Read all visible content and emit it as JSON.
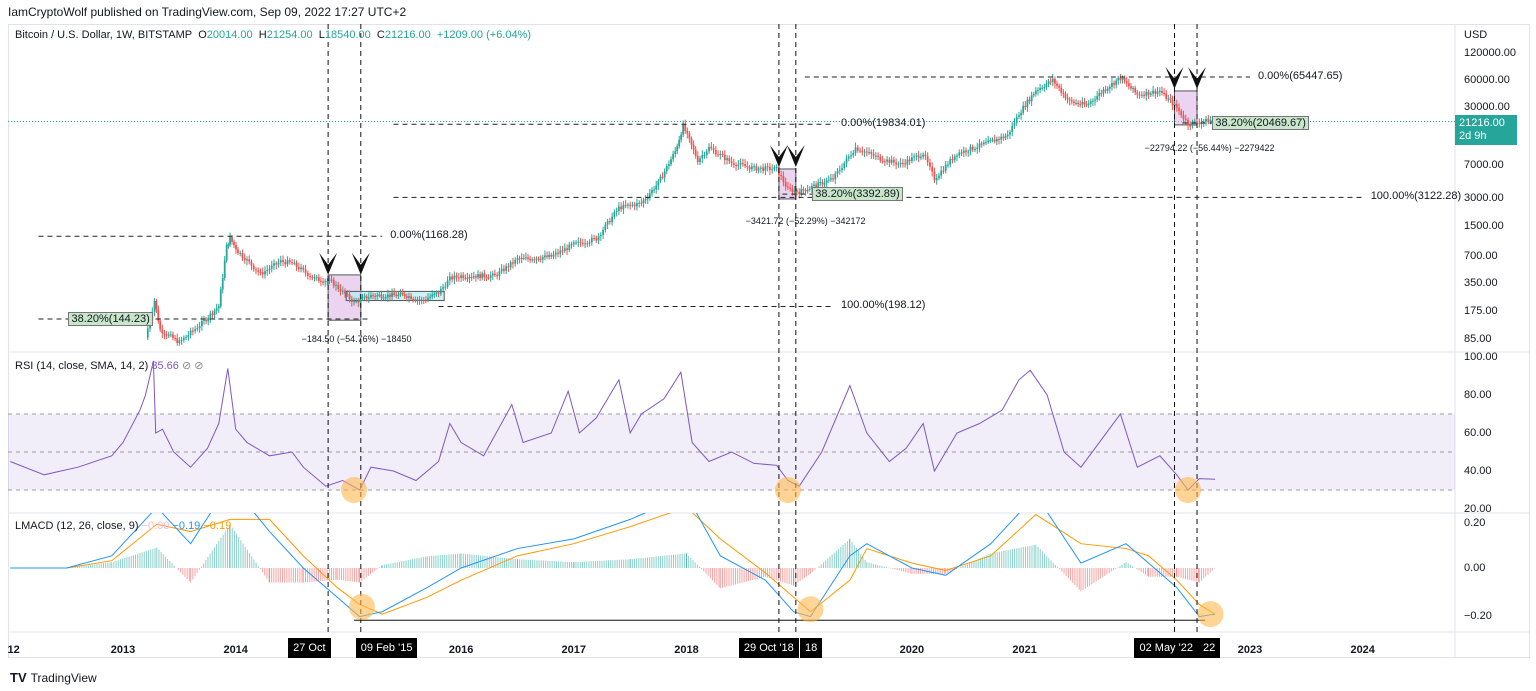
{
  "header": {
    "published": "IamCryptoWolf published on TradingView.com, Sep 09, 2022 17:27 UTC+2",
    "symbol": "Bitcoin / U.S. Dollar, 1W, BITSTAMP",
    "o_label": "O",
    "o": "20014.00",
    "h_label": "H",
    "h": "21254.00",
    "l_label": "L",
    "l": "18540.00",
    "c_label": "C",
    "c": "21216.00",
    "change": "+1209.00 (+6.04%)"
  },
  "currency": "USD",
  "last_price": {
    "value": "21216.00",
    "countdown": "2d 9h"
  },
  "footer": {
    "brand": "TradingView"
  },
  "colors": {
    "up": "#26a69a",
    "down": "#ef5350",
    "rsi": "#7e57c2",
    "macd": "#2196f3",
    "signal": "#ff9800",
    "highlight": "#ffb74d"
  },
  "indicators": {
    "rsi": {
      "title": "RSI (14, close, SMA, 14, 2)",
      "value": "35.66"
    },
    "lmacd": {
      "title": "LMACD (12, 26, close, 9)",
      "hist": "−0.00",
      "macd": "−0.19",
      "signal": "−0.19"
    }
  },
  "chart_data": {
    "type": "candlestick",
    "scale": "log",
    "x_ticks": [
      "12",
      "2013",
      "2014",
      "2016",
      "2017",
      "2018",
      "2020",
      "2021",
      "2023",
      "2024"
    ],
    "x_tick_years": [
      2012.03,
      2013,
      2014,
      2016,
      2017,
      2018,
      2020,
      2021,
      2023,
      2024
    ],
    "y_ticks": [
      "120000.00",
      "60000.00",
      "30000.00",
      "7000.00",
      "3000.00",
      "1500.00",
      "700.00",
      "350.00",
      "175.00",
      "85.00"
    ],
    "y_tick_values": [
      120000,
      60000,
      30000,
      7000,
      3000,
      1500,
      700,
      350,
      175,
      85
    ],
    "price_path": [
      [
        2013.2,
        90
      ],
      [
        2013.28,
        230
      ],
      [
        2013.33,
        110
      ],
      [
        2013.5,
        80
      ],
      [
        2013.7,
        130
      ],
      [
        2013.85,
        200
      ],
      [
        2013.92,
        900
      ],
      [
        2013.95,
        1100
      ],
      [
        2014.02,
        800
      ],
      [
        2014.12,
        600
      ],
      [
        2014.22,
        450
      ],
      [
        2014.4,
        620
      ],
      [
        2014.5,
        590
      ],
      [
        2014.7,
        400
      ],
      [
        2014.85,
        370
      ],
      [
        2015.05,
        220
      ],
      [
        2015.2,
        260
      ],
      [
        2015.5,
        265
      ],
      [
        2015.65,
        230
      ],
      [
        2015.8,
        280
      ],
      [
        2015.9,
        400
      ],
      [
        2016.0,
        430
      ],
      [
        2016.3,
        430
      ],
      [
        2016.5,
        650
      ],
      [
        2016.8,
        700
      ],
      [
        2017.0,
        950
      ],
      [
        2017.2,
        1100
      ],
      [
        2017.4,
        2400
      ],
      [
        2017.6,
        2700
      ],
      [
        2017.75,
        4500
      ],
      [
        2017.9,
        10000
      ],
      [
        2017.97,
        19000
      ],
      [
        2018.1,
        8000
      ],
      [
        2018.2,
        11000
      ],
      [
        2018.4,
        7500
      ],
      [
        2018.6,
        6500
      ],
      [
        2018.8,
        6400
      ],
      [
        2018.9,
        3800
      ],
      [
        2019.0,
        3600
      ],
      [
        2019.3,
        5000
      ],
      [
        2019.5,
        11000
      ],
      [
        2019.7,
        8500
      ],
      [
        2019.9,
        7200
      ],
      [
        2020.1,
        9500
      ],
      [
        2020.2,
        5000
      ],
      [
        2020.4,
        9500
      ],
      [
        2020.6,
        11500
      ],
      [
        2020.85,
        15000
      ],
      [
        2020.95,
        26000
      ],
      [
        2021.1,
        47000
      ],
      [
        2021.25,
        60000
      ],
      [
        2021.4,
        35000
      ],
      [
        2021.55,
        32000
      ],
      [
        2021.7,
        47000
      ],
      [
        2021.85,
        64000
      ],
      [
        2022.0,
        42000
      ],
      [
        2022.2,
        46000
      ],
      [
        2022.35,
        30000
      ],
      [
        2022.45,
        20000
      ],
      [
        2022.55,
        21000
      ],
      [
        2022.65,
        22000
      ],
      [
        2022.69,
        21216
      ]
    ],
    "fib_levels": [
      {
        "label": "0.00%(1168.28)",
        "price": 1168.28,
        "from": 2012.25,
        "to": 2015.3
      },
      {
        "label": "100.00%(198.12)",
        "price": 198.12,
        "from": 2015.8,
        "to": 2019.3
      },
      {
        "label": "38.20%(144.23)",
        "price": 144.23,
        "from": 2012.25,
        "to": 2015.2,
        "tag": true
      },
      {
        "label": "0.00%(19834.01)",
        "price": 19834.01,
        "from": 2015.4,
        "to": 2019.3
      },
      {
        "label": "100.00%(3122.28)",
        "price": 3122.28,
        "from": 2015.4,
        "to": 2024.0
      },
      {
        "label": "38.20%(3392.89)",
        "price": 3392.89,
        "from": 2018.85,
        "to": 2019.3,
        "tag": true
      },
      {
        "label": "0.00%(65447.65)",
        "price": 65447.65,
        "from": 2019.05,
        "to": 2023.0
      },
      {
        "label": "38.20%(20469.67)",
        "price": 20469.67,
        "from": 2022.4,
        "to": 2023.1,
        "tag": true
      }
    ],
    "measures": [
      {
        "label": "−184.50 (−54.76%) −18450",
        "date": 2014.94,
        "price": 120
      },
      {
        "label": "−3421.72 (−52.29%) −342172",
        "date": 2018.88,
        "price": 2400
      },
      {
        "label": "−22794.22 (−56.44%) −2279422",
        "date": 2022.42,
        "price": 15000
      }
    ],
    "marker_dates": [
      {
        "label": "27 Oct",
        "date": 2014.82
      },
      {
        "label": "09 Feb '15",
        "date": 2015.11
      },
      {
        "label": "29 Oct '18",
        "date": 2018.82
      },
      {
        "label": "18",
        "date": 2018.97
      },
      {
        "label": "02 May '22",
        "date": 2022.33
      },
      {
        "label": "22",
        "date": 2022.53
      }
    ],
    "rsi": {
      "y_ticks": [
        "100.00",
        "80.00",
        "60.00",
        "40.00",
        "20.00"
      ],
      "y_tick_values": [
        100,
        80,
        60,
        40,
        20
      ],
      "band": [
        30,
        70
      ],
      "path": [
        [
          2012.0,
          45
        ],
        [
          2012.3,
          38
        ],
        [
          2012.6,
          42
        ],
        [
          2012.9,
          48
        ],
        [
          2013.0,
          55
        ],
        [
          2013.15,
          72
        ],
        [
          2013.2,
          80
        ],
        [
          2013.27,
          98
        ],
        [
          2013.29,
          60
        ],
        [
          2013.35,
          62
        ],
        [
          2013.45,
          50
        ],
        [
          2013.6,
          42
        ],
        [
          2013.75,
          52
        ],
        [
          2013.85,
          65
        ],
        [
          2013.93,
          94
        ],
        [
          2014.0,
          62
        ],
        [
          2014.1,
          55
        ],
        [
          2014.3,
          48
        ],
        [
          2014.5,
          50
        ],
        [
          2014.6,
          42
        ],
        [
          2014.8,
          32
        ],
        [
          2014.95,
          35
        ],
        [
          2015.1,
          30
        ],
        [
          2015.2,
          42
        ],
        [
          2015.4,
          40
        ],
        [
          2015.6,
          35
        ],
        [
          2015.8,
          45
        ],
        [
          2015.9,
          65
        ],
        [
          2016.0,
          55
        ],
        [
          2016.2,
          48
        ],
        [
          2016.45,
          75
        ],
        [
          2016.55,
          55
        ],
        [
          2016.8,
          60
        ],
        [
          2016.95,
          82
        ],
        [
          2017.05,
          60
        ],
        [
          2017.2,
          68
        ],
        [
          2017.4,
          88
        ],
        [
          2017.5,
          60
        ],
        [
          2017.6,
          70
        ],
        [
          2017.8,
          78
        ],
        [
          2017.95,
          92
        ],
        [
          2018.05,
          55
        ],
        [
          2018.2,
          45
        ],
        [
          2018.4,
          50
        ],
        [
          2018.6,
          44
        ],
        [
          2018.8,
          43
        ],
        [
          2018.9,
          35
        ],
        [
          2019.0,
          32
        ],
        [
          2019.2,
          50
        ],
        [
          2019.45,
          85
        ],
        [
          2019.6,
          60
        ],
        [
          2019.8,
          45
        ],
        [
          2019.95,
          52
        ],
        [
          2020.1,
          65
        ],
        [
          2020.2,
          40
        ],
        [
          2020.4,
          60
        ],
        [
          2020.6,
          65
        ],
        [
          2020.8,
          72
        ],
        [
          2020.95,
          88
        ],
        [
          2021.05,
          93
        ],
        [
          2021.2,
          80
        ],
        [
          2021.35,
          50
        ],
        [
          2021.5,
          42
        ],
        [
          2021.7,
          58
        ],
        [
          2021.85,
          70
        ],
        [
          2022.0,
          42
        ],
        [
          2022.2,
          48
        ],
        [
          2022.35,
          38
        ],
        [
          2022.45,
          30
        ],
        [
          2022.55,
          36
        ],
        [
          2022.69,
          35.66
        ]
      ]
    },
    "lmacd": {
      "y_ticks": [
        "0.20",
        "0.00",
        "−0.20"
      ],
      "y_tick_values": [
        0.2,
        0,
        -0.2
      ],
      "support": -0.215,
      "path": [
        [
          2012.0,
          0,
          0
        ],
        [
          2012.5,
          0,
          0
        ],
        [
          2012.9,
          0.05,
          0.03
        ],
        [
          2013.3,
          0.25,
          0.18
        ],
        [
          2013.6,
          0.1,
          0.15
        ],
        [
          2013.95,
          0.35,
          0.2
        ],
        [
          2014.3,
          0.15,
          0.2
        ],
        [
          2014.6,
          0,
          0.05
        ],
        [
          2014.9,
          -0.12,
          -0.08
        ],
        [
          2015.1,
          -0.2,
          -0.15
        ],
        [
          2015.3,
          -0.18,
          -0.19
        ],
        [
          2015.7,
          -0.08,
          -0.12
        ],
        [
          2016.0,
          0,
          -0.05
        ],
        [
          2016.5,
          0.08,
          0.05
        ],
        [
          2017.0,
          0.12,
          0.1
        ],
        [
          2017.5,
          0.2,
          0.17
        ],
        [
          2018.0,
          0.3,
          0.25
        ],
        [
          2018.3,
          0.05,
          0.12
        ],
        [
          2018.7,
          -0.05,
          -0.02
        ],
        [
          2018.95,
          -0.18,
          -0.12
        ],
        [
          2019.1,
          -0.2,
          -0.18
        ],
        [
          2019.45,
          0.05,
          -0.05
        ],
        [
          2019.6,
          0.1,
          0.08
        ],
        [
          2020.0,
          0,
          0.02
        ],
        [
          2020.3,
          -0.03,
          -0.01
        ],
        [
          2020.7,
          0.1,
          0.05
        ],
        [
          2021.1,
          0.3,
          0.22
        ],
        [
          2021.5,
          0.02,
          0.1
        ],
        [
          2021.9,
          0.1,
          0.08
        ],
        [
          2022.1,
          0.02,
          0.05
        ],
        [
          2022.35,
          -0.08,
          -0.05
        ],
        [
          2022.55,
          -0.2,
          -0.15
        ],
        [
          2022.69,
          -0.19,
          -0.19
        ]
      ]
    }
  }
}
